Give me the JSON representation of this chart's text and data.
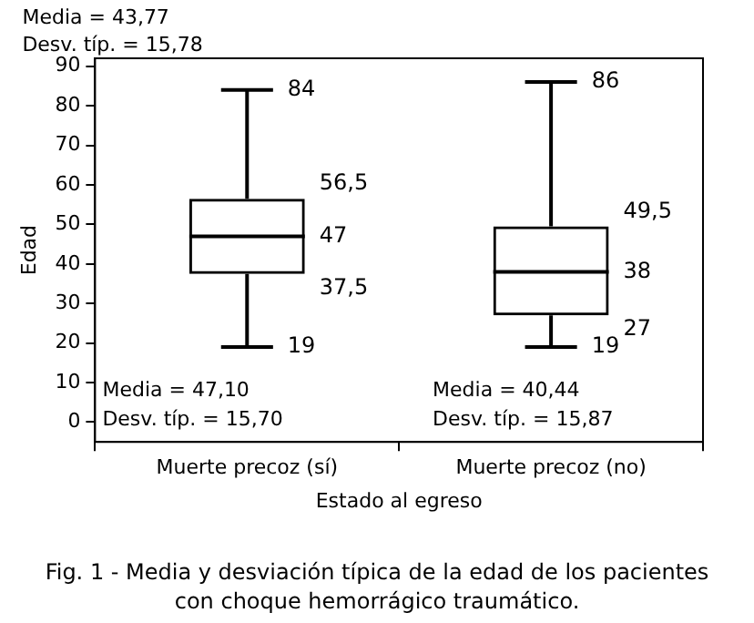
{
  "chart_data": {
    "type": "box",
    "xlabel": "Estado al egreso",
    "ylabel": "Edad",
    "categories": [
      "Muerte precoz (sí)",
      "Muerte precoz (no)"
    ],
    "boxes": [
      {
        "low": 19,
        "q1": 37.5,
        "median": 47,
        "q3": 56.5,
        "high": 84
      },
      {
        "low": 19,
        "q1": 27,
        "median": 38,
        "q3": 49.5,
        "high": 86
      }
    ],
    "value_labels": [
      [
        "19",
        "37,5",
        "47",
        "56,5",
        "84"
      ],
      [
        "19",
        "27",
        "38",
        "49,5",
        "86"
      ]
    ],
    "color": "#000000",
    "ylim": [
      -5,
      92
    ],
    "yticks": [
      0,
      10,
      20,
      30,
      40,
      50,
      60,
      70,
      80,
      90
    ],
    "grid": false,
    "legend": false,
    "annotations": [
      "Media = 43,77",
      "Desv. típ. = 15,78",
      "Media = 47,10",
      "Desv. típ. = 15,70",
      "Media = 40,44",
      "Desv. típ. = 15,87",
      "Fig. 1 - Media y desviación típica de la edad de los pacientes con choque hemorrágico traumático."
    ]
  }
}
